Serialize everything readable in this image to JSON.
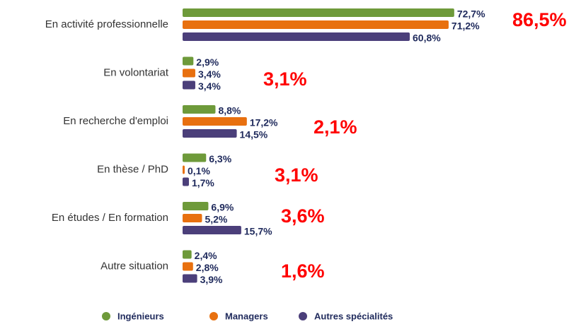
{
  "chart_data": {
    "type": "bar",
    "orientation": "horizontal",
    "categories": [
      "En activité professionnelle",
      "En volontariat",
      "En recherche d'emploi",
      "En thèse / PhD",
      "En études / En formation",
      "Autre situation"
    ],
    "series": [
      {
        "name": "Ingénieurs",
        "color": "#6e9a3a",
        "values": [
          72.7,
          2.9,
          8.8,
          6.3,
          6.9,
          2.4
        ],
        "value_labels": [
          "72,7%",
          "2,9%",
          "8,8%",
          "6,3%",
          "6,9%",
          "2,4%"
        ]
      },
      {
        "name": "Managers",
        "color": "#e8700f",
        "values": [
          71.2,
          3.4,
          17.2,
          0.1,
          5.2,
          2.8
        ],
        "value_labels": [
          "71,2%",
          "3,4%",
          "17,2%",
          "0,1%",
          "5,2%",
          "2,8%"
        ]
      },
      {
        "name": "Autres spécialités",
        "color": "#4b3f7a",
        "values": [
          60.8,
          3.4,
          14.5,
          1.7,
          15.7,
          3.9
        ],
        "value_labels": [
          "60,8%",
          "3,4%",
          "14,5%",
          "1,7%",
          "15,7%",
          "3,9%"
        ]
      }
    ],
    "annotations": [
      "86,5%",
      "3,1%",
      "2,1%",
      "3,1%",
      "3,6%",
      "1,6%"
    ],
    "legend": "bottom"
  }
}
